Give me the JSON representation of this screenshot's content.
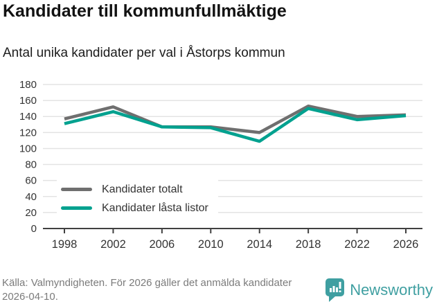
{
  "header": {
    "title": "Kandidater till kommunfullmäktige",
    "subtitle": "Antal unika kandidater per val i Åstorps kommun"
  },
  "chart_data": {
    "type": "line",
    "categories": [
      "1998",
      "2002",
      "2006",
      "2010",
      "2014",
      "2018",
      "2022",
      "2026"
    ],
    "series": [
      {
        "name": "Kandidater totalt",
        "color": "#6f6f6f",
        "values": [
          137,
          152,
          127,
          127,
          120,
          153,
          140,
          142
        ]
      },
      {
        "name": "Kandidater låsta listor",
        "color": "#00a18f",
        "values": [
          131,
          146,
          127,
          126,
          109,
          150,
          136,
          141
        ]
      }
    ],
    "title": "Kandidater till kommunfullmäktige",
    "subtitle": "Antal unika kandidater per val i Åstorps kommun",
    "xlabel": "",
    "ylabel": "",
    "ylim": [
      0,
      180
    ],
    "ytick_step": 20,
    "grid": true,
    "legend_position": "inside bottom-left",
    "grid_color": "#e3e3e3",
    "axis_color": "#404040",
    "tick_label_color": "#333333"
  },
  "footer": {
    "source": "Källa: Valmyndigheten. För 2026 gäller det anmälda kandidater 2026-04-10.",
    "brand": "Newsworthy",
    "brand_color": "#3f9fa1"
  }
}
